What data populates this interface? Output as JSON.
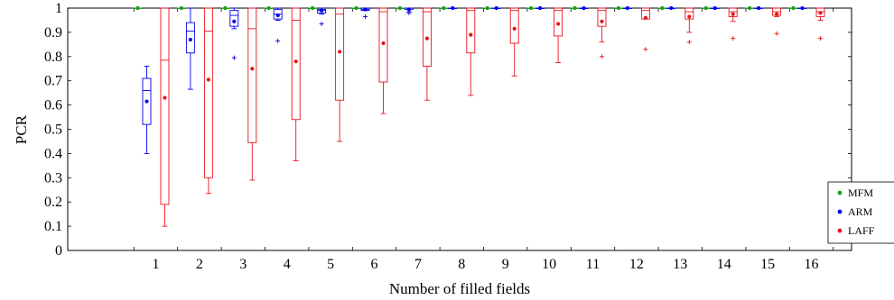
{
  "chart_data": {
    "type": "box",
    "xlabel": "Number of filled fields",
    "ylabel": "PCR",
    "ylim": [
      0,
      1
    ],
    "yticks": [
      0,
      0.1,
      0.2,
      0.3,
      0.4,
      0.5,
      0.6,
      0.7,
      0.8,
      0.9,
      1
    ],
    "ytick_labels": [
      "0",
      "0.1",
      "0.2",
      "0.3",
      "0.4",
      "0.5",
      "0.6",
      "0.7",
      "0.8",
      "0.9",
      "1"
    ],
    "categories": [
      "1",
      "2",
      "3",
      "4",
      "5",
      "6",
      "7",
      "8",
      "9",
      "10",
      "11",
      "12",
      "13",
      "14",
      "15",
      "16"
    ],
    "grid": false,
    "legend_position": "bottom-right",
    "series": [
      {
        "name": "MFM",
        "color": "#1a9e1a",
        "boxes": [
          {
            "whislo": 1,
            "q1": 1,
            "med": 1,
            "q3": 1,
            "whishi": 1,
            "mean": 1,
            "fliers": []
          },
          {
            "whislo": 1,
            "q1": 1,
            "med": 1,
            "q3": 1,
            "whishi": 1,
            "mean": 1,
            "fliers": []
          },
          {
            "whislo": 1,
            "q1": 1,
            "med": 1,
            "q3": 1,
            "whishi": 1,
            "mean": 1,
            "fliers": []
          },
          {
            "whislo": 1,
            "q1": 1,
            "med": 1,
            "q3": 1,
            "whishi": 1,
            "mean": 1,
            "fliers": []
          },
          {
            "whislo": 1,
            "q1": 1,
            "med": 1,
            "q3": 1,
            "whishi": 1,
            "mean": 1,
            "fliers": []
          },
          {
            "whislo": 1,
            "q1": 1,
            "med": 1,
            "q3": 1,
            "whishi": 1,
            "mean": 1,
            "fliers": []
          },
          {
            "whislo": 1,
            "q1": 1,
            "med": 1,
            "q3": 1,
            "whishi": 1,
            "mean": 1,
            "fliers": []
          },
          {
            "whislo": 1,
            "q1": 1,
            "med": 1,
            "q3": 1,
            "whishi": 1,
            "mean": 1,
            "fliers": []
          },
          {
            "whislo": 1,
            "q1": 1,
            "med": 1,
            "q3": 1,
            "whishi": 1,
            "mean": 1,
            "fliers": []
          },
          {
            "whislo": 1,
            "q1": 1,
            "med": 1,
            "q3": 1,
            "whishi": 1,
            "mean": 1,
            "fliers": []
          },
          {
            "whislo": 1,
            "q1": 1,
            "med": 1,
            "q3": 1,
            "whishi": 1,
            "mean": 1,
            "fliers": []
          },
          {
            "whislo": 1,
            "q1": 1,
            "med": 1,
            "q3": 1,
            "whishi": 1,
            "mean": 1,
            "fliers": []
          },
          {
            "whislo": 1,
            "q1": 1,
            "med": 1,
            "q3": 1,
            "whishi": 1,
            "mean": 1,
            "fliers": []
          },
          {
            "whislo": 1,
            "q1": 1,
            "med": 1,
            "q3": 1,
            "whishi": 1,
            "mean": 1,
            "fliers": []
          },
          {
            "whislo": 1,
            "q1": 1,
            "med": 1,
            "q3": 1,
            "whishi": 1,
            "mean": 1,
            "fliers": []
          },
          {
            "whislo": 1,
            "q1": 1,
            "med": 1,
            "q3": 1,
            "whishi": 1,
            "mean": 1,
            "fliers": []
          }
        ]
      },
      {
        "name": "ARM",
        "color": "#0000e6",
        "boxes": [
          {
            "whislo": 0.4,
            "q1": 0.52,
            "med": 0.66,
            "q3": 0.71,
            "whishi": 0.76,
            "mean": 0.615,
            "fliers": []
          },
          {
            "whislo": 0.665,
            "q1": 0.815,
            "med": 0.905,
            "q3": 0.94,
            "whishi": 1.0,
            "mean": 0.87,
            "fliers": []
          },
          {
            "whislo": 0.915,
            "q1": 0.925,
            "med": 0.97,
            "q3": 0.99,
            "whishi": 1.0,
            "mean": 0.945,
            "fliers": [
              0.795
            ]
          },
          {
            "whislo": 0.95,
            "q1": 0.955,
            "med": 0.975,
            "q3": 0.995,
            "whishi": 1.0,
            "mean": 0.97,
            "fliers": [
              0.865
            ]
          },
          {
            "whislo": 0.975,
            "q1": 0.98,
            "med": 0.99,
            "q3": 0.995,
            "whishi": 1.0,
            "mean": 0.99,
            "fliers": [
              0.935
            ]
          },
          {
            "whislo": 0.99,
            "q1": 0.99,
            "med": 0.995,
            "q3": 1.0,
            "whishi": 1.0,
            "mean": 0.995,
            "fliers": [
              0.965
            ]
          },
          {
            "whislo": 0.985,
            "q1": 0.995,
            "med": 1.0,
            "q3": 1.0,
            "whishi": 1.0,
            "mean": 0.995,
            "fliers": [
              0.98
            ]
          },
          {
            "whislo": 1,
            "q1": 1,
            "med": 1,
            "q3": 1,
            "whishi": 1,
            "mean": 1,
            "fliers": []
          },
          {
            "whislo": 1,
            "q1": 1,
            "med": 1,
            "q3": 1,
            "whishi": 1,
            "mean": 1,
            "fliers": []
          },
          {
            "whislo": 1,
            "q1": 1,
            "med": 1,
            "q3": 1,
            "whishi": 1,
            "mean": 1,
            "fliers": []
          },
          {
            "whislo": 1,
            "q1": 1,
            "med": 1,
            "q3": 1,
            "whishi": 1,
            "mean": 1,
            "fliers": []
          },
          {
            "whislo": 1,
            "q1": 1,
            "med": 1,
            "q3": 1,
            "whishi": 1,
            "mean": 1,
            "fliers": []
          },
          {
            "whislo": 1,
            "q1": 1,
            "med": 1,
            "q3": 1,
            "whishi": 1,
            "mean": 1,
            "fliers": []
          },
          {
            "whislo": 1,
            "q1": 1,
            "med": 1,
            "q3": 1,
            "whishi": 1,
            "mean": 1,
            "fliers": []
          },
          {
            "whislo": 1,
            "q1": 1,
            "med": 1,
            "q3": 1,
            "whishi": 1,
            "mean": 1,
            "fliers": []
          },
          {
            "whislo": 1,
            "q1": 1,
            "med": 1,
            "q3": 1,
            "whishi": 1,
            "mean": 1,
            "fliers": []
          }
        ]
      },
      {
        "name": "LAFF",
        "color": "#e8141a",
        "boxes": [
          {
            "whislo": 0.1,
            "q1": 0.19,
            "med": 0.785,
            "q3": 1.0,
            "whishi": 1.0,
            "mean": 0.63,
            "fliers": []
          },
          {
            "whislo": 0.235,
            "q1": 0.3,
            "med": 0.905,
            "q3": 1.0,
            "whishi": 1.0,
            "mean": 0.705,
            "fliers": []
          },
          {
            "whislo": 0.29,
            "q1": 0.445,
            "med": 0.915,
            "q3": 1.0,
            "whishi": 1.0,
            "mean": 0.75,
            "fliers": []
          },
          {
            "whislo": 0.37,
            "q1": 0.54,
            "med": 0.95,
            "q3": 1.0,
            "whishi": 1.0,
            "mean": 0.78,
            "fliers": []
          },
          {
            "whislo": 0.45,
            "q1": 0.62,
            "med": 0.975,
            "q3": 1.0,
            "whishi": 1.0,
            "mean": 0.82,
            "fliers": []
          },
          {
            "whislo": 0.565,
            "q1": 0.695,
            "med": 0.985,
            "q3": 1.0,
            "whishi": 1.0,
            "mean": 0.855,
            "fliers": []
          },
          {
            "whislo": 0.62,
            "q1": 0.76,
            "med": 0.985,
            "q3": 1.0,
            "whishi": 1.0,
            "mean": 0.875,
            "fliers": []
          },
          {
            "whislo": 0.64,
            "q1": 0.815,
            "med": 0.99,
            "q3": 1.0,
            "whishi": 1.0,
            "mean": 0.89,
            "fliers": []
          },
          {
            "whislo": 0.72,
            "q1": 0.855,
            "med": 0.99,
            "q3": 1.0,
            "whishi": 1.0,
            "mean": 0.915,
            "fliers": []
          },
          {
            "whislo": 0.775,
            "q1": 0.885,
            "med": 0.99,
            "q3": 1.0,
            "whishi": 1.0,
            "mean": 0.935,
            "fliers": []
          },
          {
            "whislo": 0.86,
            "q1": 0.925,
            "med": 0.99,
            "q3": 1.0,
            "whishi": 1.0,
            "mean": 0.945,
            "fliers": [
              0.8
            ]
          },
          {
            "whislo": 0.955,
            "q1": 0.955,
            "med": 0.99,
            "q3": 1.0,
            "whishi": 1.0,
            "mean": 0.96,
            "fliers": [
              0.83
            ]
          },
          {
            "whislo": 0.9,
            "q1": 0.955,
            "med": 0.985,
            "q3": 1.0,
            "whishi": 1.0,
            "mean": 0.965,
            "fliers": [
              0.86
            ]
          },
          {
            "whislo": 0.945,
            "q1": 0.965,
            "med": 0.985,
            "q3": 1.0,
            "whishi": 1.0,
            "mean": 0.975,
            "fliers": [
              0.875
            ]
          },
          {
            "whislo": 0.965,
            "q1": 0.97,
            "med": 0.985,
            "q3": 1.0,
            "whishi": 1.0,
            "mean": 0.975,
            "fliers": [
              0.895
            ]
          },
          {
            "whislo": 0.95,
            "q1": 0.965,
            "med": 0.985,
            "q3": 1.0,
            "whishi": 1.0,
            "mean": 0.98,
            "fliers": [
              0.875
            ]
          }
        ]
      }
    ]
  }
}
